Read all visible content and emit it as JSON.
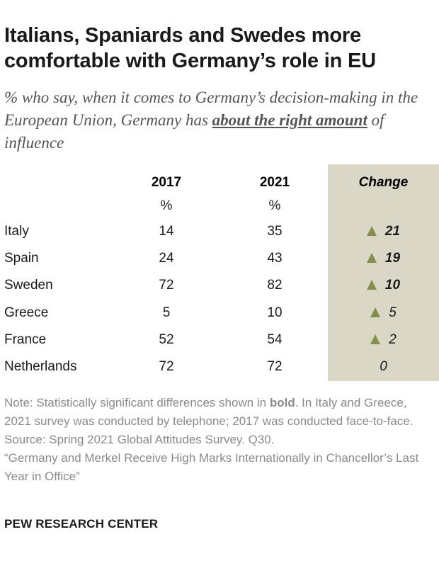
{
  "title": "Italians, Spaniards and Swedes more comfortable with Germany’s role in EU",
  "subtitle": {
    "before": "% who say, when it comes to Germany’s decision-making in the European Union, Germany has ",
    "emphasis": "about the right amount",
    "after": " of influence"
  },
  "chart_data": {
    "type": "table",
    "columns": [
      "2017",
      "2021",
      "Change"
    ],
    "unit": "%",
    "rows": [
      {
        "country": "Italy",
        "v2017": 14,
        "v2021": 35,
        "change": "21",
        "direction": "up",
        "significant": true
      },
      {
        "country": "Spain",
        "v2017": 24,
        "v2021": 43,
        "change": "19",
        "direction": "up",
        "significant": true
      },
      {
        "country": "Sweden",
        "v2017": 72,
        "v2021": 82,
        "change": "10",
        "direction": "up",
        "significant": true
      },
      {
        "country": "Greece",
        "v2017": 5,
        "v2021": 10,
        "change": "5",
        "direction": "up",
        "significant": false
      },
      {
        "country": "France",
        "v2017": 52,
        "v2021": 54,
        "change": "2",
        "direction": "up",
        "significant": false
      },
      {
        "country": "Netherlands",
        "v2017": 72,
        "v2021": 72,
        "change": "0",
        "direction": "none",
        "significant": false
      }
    ]
  },
  "note": {
    "prefix": "Note: Statistically significant differences shown in ",
    "bold_word": "bold",
    "suffix": ". In Italy and Greece, 2021 survey was conducted by telephone; 2017 was conducted face-to-face.",
    "source": "Source: Spring 2021 Global Attitudes Survey. Q30.",
    "report": "“Germany and Merkel Receive High Marks Internationally in Chancellor’s Last Year in Office”"
  },
  "brand": "PEW RESEARCH CENTER",
  "colors": {
    "change_background": "#dad7c6",
    "triangle": "#8a8d4a"
  }
}
